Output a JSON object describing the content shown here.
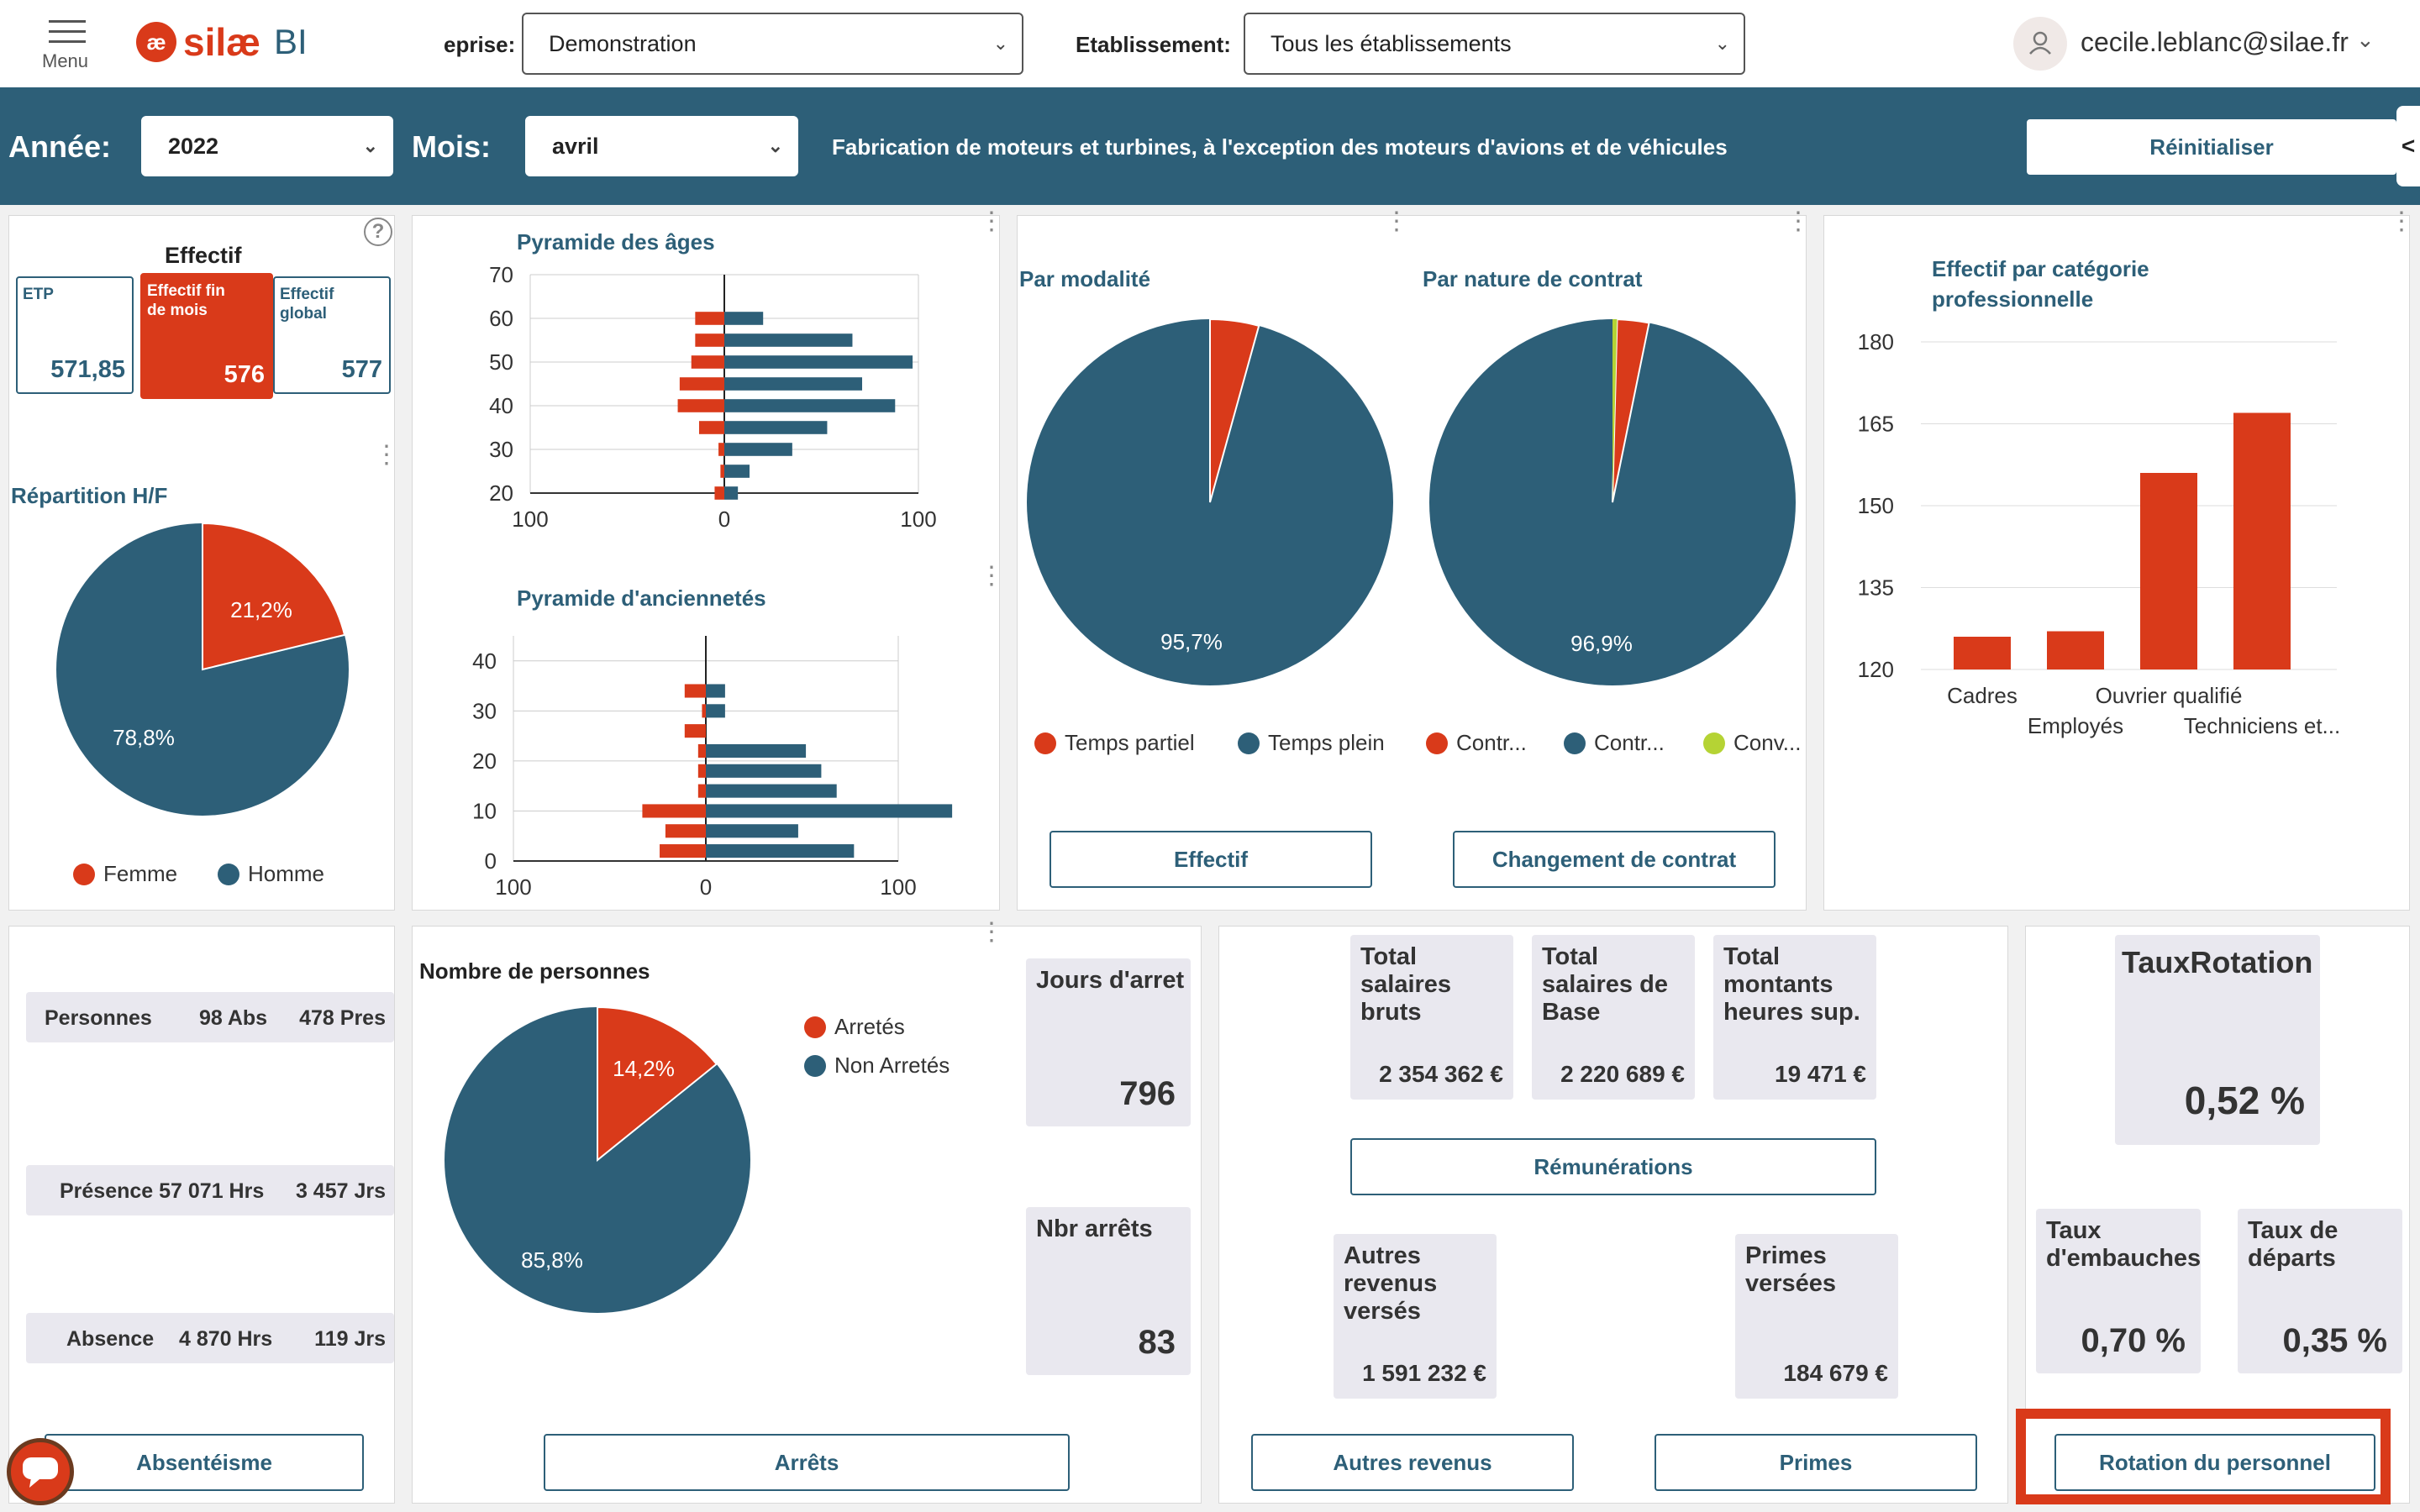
{
  "header": {
    "menu_label": "Menu",
    "logo_text": "silæ",
    "logo_suffix": "BI",
    "company_label": "eprise:",
    "company_value": "Demonstration",
    "establishment_label": "Etablissement:",
    "establishment_value": "Tous les établissements",
    "user_email": "cecile.leblanc@silae.fr"
  },
  "filters": {
    "year_label": "Année:",
    "year_value": "2022",
    "month_label": "Mois:",
    "month_value": "avril",
    "activity": "Fabrication de moteurs et turbines, à l'exception des moteurs d'avions et de véhicules",
    "reset_label": "Réinitialiser",
    "collapse_label": "<"
  },
  "effectif": {
    "title": "Effectif",
    "etp_label": "ETP",
    "etp_value": "571,85",
    "fin_label": "Effectif fin de mois",
    "fin_value": "576",
    "global_label": "Effectif global",
    "global_value": "577",
    "help": "?"
  },
  "repartition": {
    "title": "Répartition H/F",
    "femme_pct": "21,2%",
    "homme_pct": "78,8%",
    "legend_femme": "Femme",
    "legend_homme": "Homme",
    "femme_share": 0.212
  },
  "pyramide_ages": {
    "title": "Pyramide des âges"
  },
  "pyramide_anc": {
    "title": "Pyramide d'anciennetés"
  },
  "modalite": {
    "title": "Par modalité",
    "main_pct": "95,7%",
    "legend_partiel": "Temps partiel",
    "legend_plein": "Temps plein",
    "partiel_share": 0.043
  },
  "contrat": {
    "title": "Par nature de contrat",
    "main_pct": "96,9%",
    "legend_1": "Contr...",
    "legend_2": "Contr...",
    "legend_3": "Conv...",
    "share_1": 0.028,
    "share_3": 0.003
  },
  "buttons": {
    "effectif": "Effectif",
    "changement": "Changement de contrat",
    "remunerations": "Rémunérations",
    "absenteisme": "Absentéisme",
    "arrets": "Arrêts",
    "autres_revenus": "Autres revenus",
    "primes": "Primes",
    "rotation": "Rotation du personnel"
  },
  "categorie": {
    "title_line1": "Effectif par catégorie",
    "title_line2": "professionnelle"
  },
  "absences": {
    "rows": [
      {
        "label": "Personnes",
        "v1": "98 Abs",
        "v2": "478 Pres"
      },
      {
        "label": "Présence 57 071 Hrs",
        "v1": "",
        "v2": "3 457 Jrs"
      },
      {
        "label": "Absence",
        "v1": "4 870 Hrs",
        "v2": "119 Jrs"
      }
    ]
  },
  "arrets": {
    "title": "Nombre de personnes",
    "arretes_pct": "14,2%",
    "non_arretes_pct": "85,8%",
    "legend_arretes": "Arretés",
    "legend_non": "Non Arretés",
    "arretes_share": 0.142,
    "jours_label": "Jours d'arret",
    "jours_value": "796",
    "nbr_label": "Nbr arrêts",
    "nbr_value": "83"
  },
  "remuneration": {
    "bruts_label": "Total salaires bruts",
    "bruts_value": "2 354 362 €",
    "base_label": "Total salaires de Base",
    "base_value": "2 220 689 €",
    "heures_label": "Total montants heures sup.",
    "heures_value": "19 471 €",
    "autres_label": "Autres revenus versés",
    "autres_value": "1 591 232 €",
    "primes_label": "Primes versées",
    "primes_value": "184 679 €"
  },
  "rotation": {
    "taux_label": "TauxRotation",
    "taux_value": "0,52 %",
    "embauches_label": "Taux d'embauches",
    "embauches_value": "0,70 %",
    "departs_label": "Taux de départs",
    "departs_value": "0,35 %"
  },
  "colors": {
    "red": "#d93a1a",
    "blue": "#2d5f78",
    "lime": "#b5d334",
    "card": "#e9e8ef"
  },
  "chart_data": [
    {
      "type": "bar",
      "title": "Pyramide des âges",
      "orientation": "horizontal-diverging",
      "categories": [
        "20",
        "25",
        "30",
        "35",
        "40",
        "45",
        "50",
        "55",
        "60",
        "65"
      ],
      "series": [
        {
          "name": "Femme",
          "values": [
            -5,
            -2,
            -3,
            -13,
            -24,
            -23,
            -17,
            -15,
            -15,
            0
          ]
        },
        {
          "name": "Homme",
          "values": [
            7,
            13,
            35,
            53,
            88,
            71,
            97,
            66,
            20,
            0
          ]
        }
      ],
      "ylim": [
        20,
        70
      ],
      "xlim": [
        -100,
        100
      ],
      "yticks": [
        "20",
        "30",
        "40",
        "50",
        "60",
        "70"
      ],
      "xticks": [
        "100",
        "0",
        "100"
      ]
    },
    {
      "type": "bar",
      "title": "Pyramide d'anciennetés",
      "orientation": "horizontal-diverging",
      "categories": [
        "2",
        "6",
        "10",
        "14",
        "18",
        "22",
        "26",
        "30",
        "34",
        "38"
      ],
      "series": [
        {
          "name": "Femme",
          "values": [
            -24,
            -21,
            -33,
            -4,
            -4,
            -4,
            -11,
            -2,
            -11,
            0
          ]
        },
        {
          "name": "Homme",
          "values": [
            77,
            48,
            128,
            68,
            60,
            52,
            0,
            10,
            10,
            0
          ]
        }
      ],
      "ylim": [
        0,
        45
      ],
      "xlim": [
        -100,
        100
      ],
      "yticks": [
        "0",
        "10",
        "20",
        "30",
        "40"
      ],
      "xticks": [
        "100",
        "0",
        "100"
      ]
    },
    {
      "type": "bar",
      "title": "Effectif par catégorie professionnelle",
      "categories": [
        "Cadres",
        "Employés",
        "Ouvrier qualifié",
        "Techniciens et..."
      ],
      "values": [
        126,
        127,
        156,
        167
      ],
      "ylim": [
        120,
        180
      ],
      "yticks": [
        "120",
        "135",
        "150",
        "165",
        "180"
      ]
    }
  ]
}
